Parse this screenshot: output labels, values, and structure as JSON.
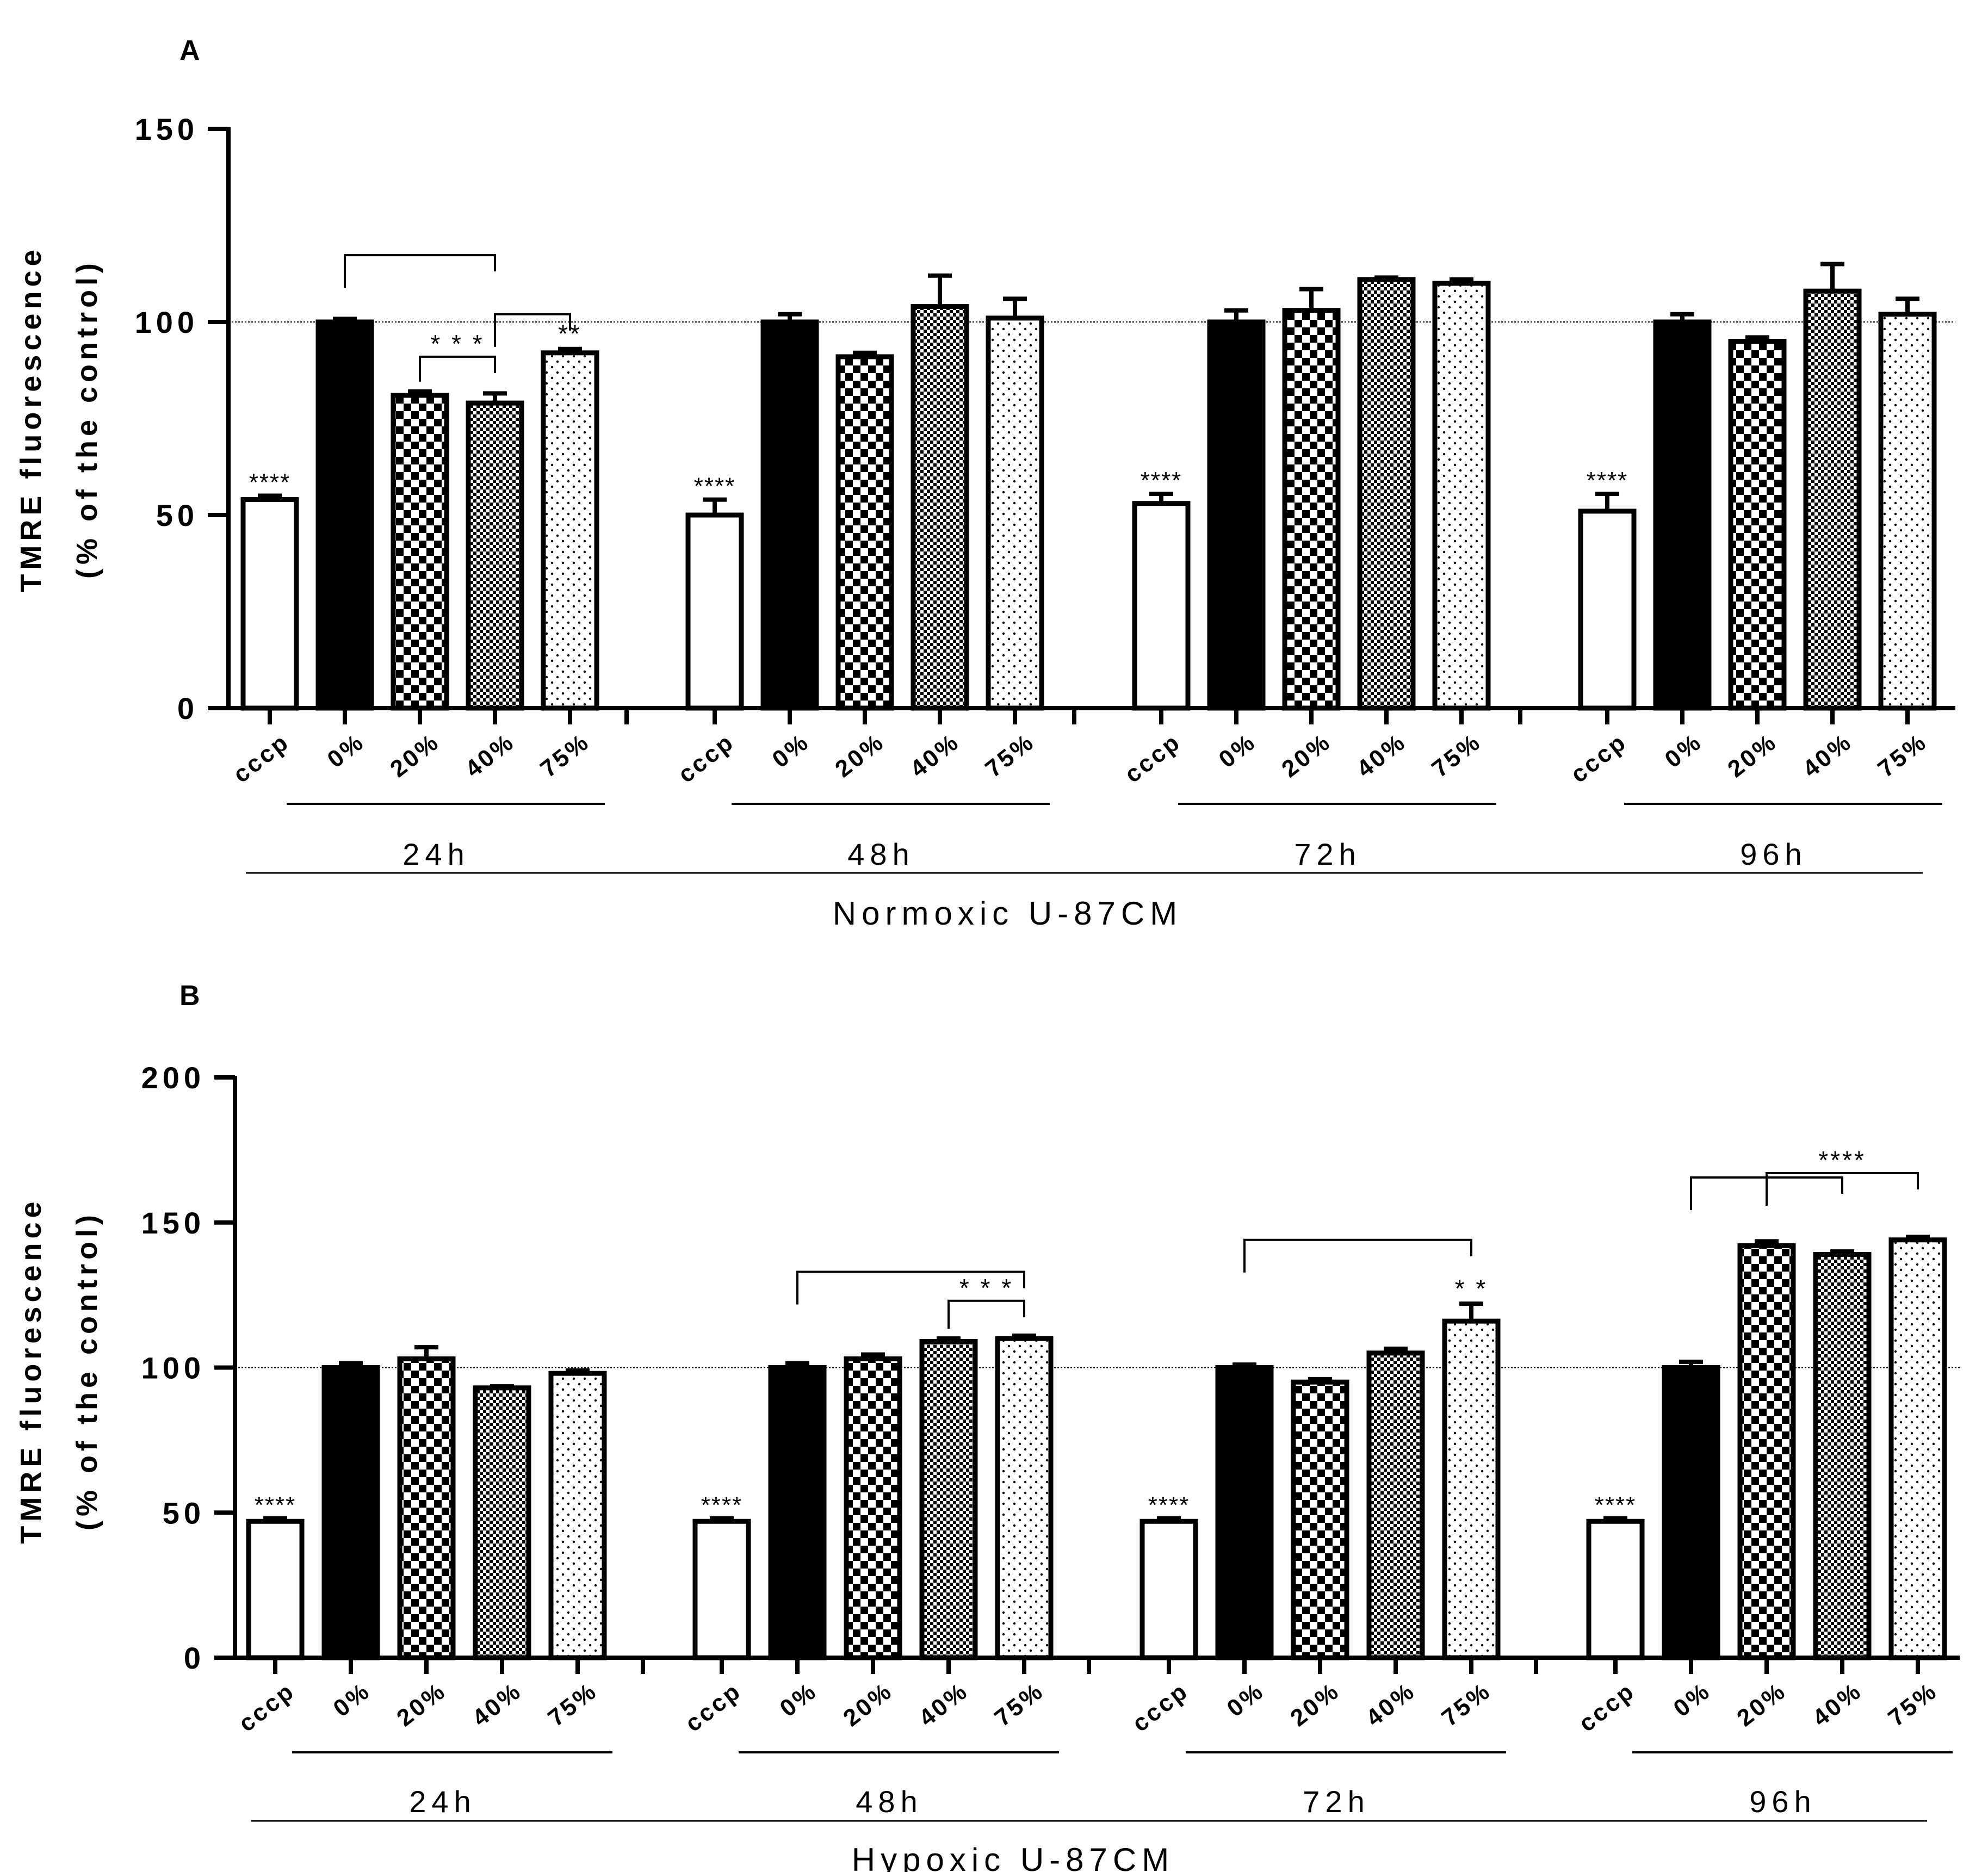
{
  "chart_data": [
    {
      "type": "bar",
      "panel_label": "A",
      "ylabel_line1": "TMRE fluorescence",
      "ylabel_line2": "(% of the control)",
      "ylim": [
        0,
        150
      ],
      "yticks": [
        0,
        50,
        100,
        150
      ],
      "reference_line": 100,
      "condition_label": "Normoxic U-87CM",
      "categories": [
        "cccp",
        "0%",
        "20%",
        "40%",
        "75%"
      ],
      "groups": [
        {
          "label": "24h",
          "values": [
            54,
            100,
            81,
            79,
            92
          ],
          "errors": [
            1,
            0.8,
            1,
            2.5,
            1
          ],
          "cccp_sig": "****"
        },
        {
          "label": "48h",
          "values": [
            50,
            100,
            91,
            104,
            101
          ],
          "errors": [
            4,
            2,
            1,
            8,
            5
          ],
          "cccp_sig": "****"
        },
        {
          "label": "72h",
          "values": [
            53,
            100,
            103,
            111,
            110
          ],
          "errors": [
            2.5,
            3,
            5.5,
            0.5,
            1
          ],
          "cccp_sig": "****"
        },
        {
          "label": "96h",
          "values": [
            51,
            100,
            95,
            108,
            102
          ],
          "errors": [
            4.5,
            2,
            1,
            7,
            4
          ],
          "cccp_sig": "****"
        }
      ],
      "comparisons": [
        {
          "group": 0,
          "from": 1,
          "to": 3,
          "label": ""
        },
        {
          "group": 0,
          "from": 3,
          "to": 4,
          "label": ""
        },
        {
          "group": 0,
          "from": 2,
          "to": 3,
          "label": "* * *"
        }
      ],
      "bar_labels": [
        {
          "group": 0,
          "bar": 4,
          "label": "**"
        }
      ]
    },
    {
      "type": "bar",
      "panel_label": "B",
      "ylabel_line1": "TMRE fluorescence",
      "ylabel_line2": "(% of the control)",
      "ylim": [
        0,
        200
      ],
      "yticks": [
        0,
        50,
        100,
        150,
        200
      ],
      "reference_line": 100,
      "condition_label": "Hypoxic U-87CM",
      "categories": [
        "cccp",
        "0%",
        "20%",
        "40%",
        "75%"
      ],
      "groups": [
        {
          "label": "24h",
          "values": [
            47,
            100,
            103,
            93,
            98
          ],
          "errors": [
            1,
            1.5,
            4,
            0.5,
            1
          ],
          "cccp_sig": "****"
        },
        {
          "label": "48h",
          "values": [
            47,
            100,
            103,
            109,
            110
          ],
          "errors": [
            1,
            1.5,
            1.5,
            1,
            1
          ],
          "cccp_sig": "****"
        },
        {
          "label": "72h",
          "values": [
            47,
            100,
            95,
            105,
            116
          ],
          "errors": [
            1,
            1,
            1,
            1.5,
            6
          ],
          "cccp_sig": "****"
        },
        {
          "label": "96h",
          "values": [
            47,
            100,
            142,
            139,
            144
          ],
          "errors": [
            1,
            2,
            1.5,
            1,
            1
          ],
          "cccp_sig": "****"
        }
      ],
      "comparisons": [
        {
          "group": 1,
          "from": 1,
          "to": 4,
          "label": ""
        },
        {
          "group": 1,
          "from": 3,
          "to": 4,
          "label": "* * *"
        },
        {
          "group": 2,
          "from": 1,
          "to": 4,
          "label": ""
        },
        {
          "group": 3,
          "from": 1,
          "to": 3,
          "label": ""
        },
        {
          "group": 3,
          "from": 2,
          "to": 4,
          "label": "****"
        }
      ],
      "bar_labels": [
        {
          "group": 2,
          "bar": 4,
          "label": "* *"
        }
      ]
    }
  ],
  "colors": {
    "ink": "#000000",
    "background": "#ffffff"
  }
}
